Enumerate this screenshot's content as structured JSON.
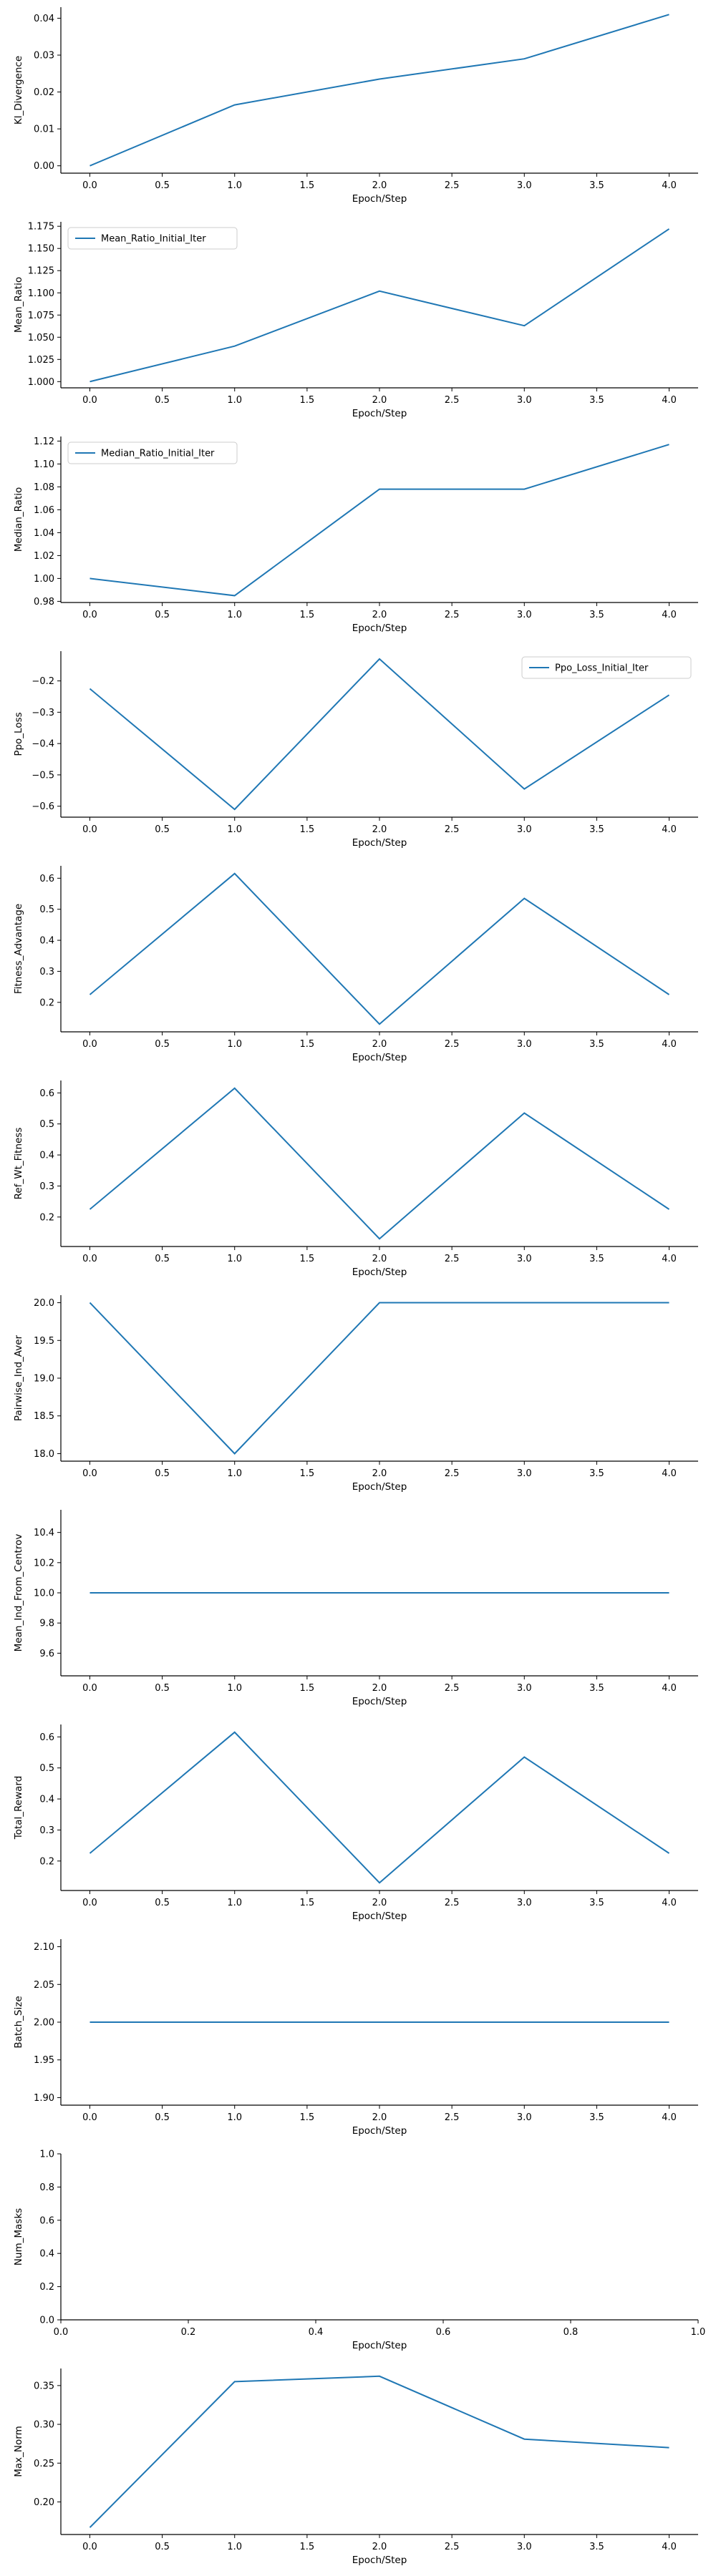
{
  "chart_data": [
    {
      "type": "line",
      "xlabel": "Epoch/Step",
      "ylabel": "Kl_Divergence",
      "x": [
        0,
        1,
        2,
        3,
        4
      ],
      "series": [
        {
          "values": [
            0.0,
            0.0165,
            0.0235,
            0.029,
            0.041
          ]
        }
      ],
      "xlim": [
        -0.2,
        4.2
      ],
      "ylim": [
        -0.002,
        0.043
      ],
      "xticks": [
        0,
        0.5,
        1,
        1.5,
        2,
        2.5,
        3,
        3.5,
        4
      ],
      "xtick_labels": [
        "0.0",
        "0.5",
        "1.0",
        "1.5",
        "2.0",
        "2.5",
        "3.0",
        "3.5",
        "4.0"
      ],
      "yticks": [
        0,
        0.01,
        0.02,
        0.03,
        0.04
      ],
      "ytick_labels": [
        "0.00",
        "0.01",
        "0.02",
        "0.03",
        "0.04"
      ],
      "legend": null
    },
    {
      "type": "line",
      "xlabel": "Epoch/Step",
      "ylabel": "Mean_Ratio",
      "x": [
        0,
        1,
        2,
        3,
        4
      ],
      "series": [
        {
          "name": "Mean_Ratio_Initial_Iter",
          "values": [
            1.0,
            1.04,
            1.102,
            1.063,
            1.172
          ]
        }
      ],
      "xlim": [
        -0.2,
        4.2
      ],
      "ylim": [
        0.993,
        1.18
      ],
      "xticks": [
        0,
        0.5,
        1,
        1.5,
        2,
        2.5,
        3,
        3.5,
        4
      ],
      "xtick_labels": [
        "0.0",
        "0.5",
        "1.0",
        "1.5",
        "2.0",
        "2.5",
        "3.0",
        "3.5",
        "4.0"
      ],
      "yticks": [
        1.0,
        1.025,
        1.05,
        1.075,
        1.1,
        1.125,
        1.15,
        1.175
      ],
      "ytick_labels": [
        "1.000",
        "1.025",
        "1.050",
        "1.075",
        "1.100",
        "1.125",
        "1.150",
        "1.175"
      ],
      "legend": "upper-left"
    },
    {
      "type": "line",
      "xlabel": "Epoch/Step",
      "ylabel": "Median_Ratio",
      "x": [
        0,
        1,
        2,
        3,
        4
      ],
      "series": [
        {
          "name": "Median_Ratio_Initial_Iter",
          "values": [
            1.0,
            0.985,
            1.078,
            1.078,
            1.117
          ]
        }
      ],
      "xlim": [
        -0.2,
        4.2
      ],
      "ylim": [
        0.979,
        1.124
      ],
      "xticks": [
        0,
        0.5,
        1,
        1.5,
        2,
        2.5,
        3,
        3.5,
        4
      ],
      "xtick_labels": [
        "0.0",
        "0.5",
        "1.0",
        "1.5",
        "2.0",
        "2.5",
        "3.0",
        "3.5",
        "4.0"
      ],
      "yticks": [
        0.98,
        1.0,
        1.02,
        1.04,
        1.06,
        1.08,
        1.1,
        1.12
      ],
      "ytick_labels": [
        "0.98",
        "1.00",
        "1.02",
        "1.04",
        "1.06",
        "1.08",
        "1.10",
        "1.12"
      ],
      "legend": "upper-left"
    },
    {
      "type": "line",
      "xlabel": "Epoch/Step",
      "ylabel": "Ppo_Loss",
      "x": [
        0,
        1,
        2,
        3,
        4
      ],
      "series": [
        {
          "name": "Ppo_Loss_Initial_Iter",
          "values": [
            -0.225,
            -0.61,
            -0.13,
            -0.545,
            -0.245
          ]
        }
      ],
      "xlim": [
        -0.2,
        4.2
      ],
      "ylim": [
        -0.635,
        -0.105
      ],
      "xticks": [
        0,
        0.5,
        1,
        1.5,
        2,
        2.5,
        3,
        3.5,
        4
      ],
      "xtick_labels": [
        "0.0",
        "0.5",
        "1.0",
        "1.5",
        "2.0",
        "2.5",
        "3.0",
        "3.5",
        "4.0"
      ],
      "yticks": [
        -0.6,
        -0.5,
        -0.4,
        -0.3,
        -0.2
      ],
      "ytick_labels": [
        "−0.6",
        "−0.5",
        "−0.4",
        "−0.3",
        "−0.2"
      ],
      "legend": "upper-right"
    },
    {
      "type": "line",
      "xlabel": "Epoch/Step",
      "ylabel": "Fitness_Advantage",
      "x": [
        0,
        1,
        2,
        3,
        4
      ],
      "series": [
        {
          "values": [
            0.225,
            0.615,
            0.13,
            0.535,
            0.225
          ]
        }
      ],
      "xlim": [
        -0.2,
        4.2
      ],
      "ylim": [
        0.105,
        0.64
      ],
      "xticks": [
        0,
        0.5,
        1,
        1.5,
        2,
        2.5,
        3,
        3.5,
        4
      ],
      "xtick_labels": [
        "0.0",
        "0.5",
        "1.0",
        "1.5",
        "2.0",
        "2.5",
        "3.0",
        "3.5",
        "4.0"
      ],
      "yticks": [
        0.2,
        0.3,
        0.4,
        0.5,
        0.6
      ],
      "ytick_labels": [
        "0.2",
        "0.3",
        "0.4",
        "0.5",
        "0.6"
      ],
      "legend": null
    },
    {
      "type": "line",
      "xlabel": "Epoch/Step",
      "ylabel": "Ref_Wt_Fitness",
      "x": [
        0,
        1,
        2,
        3,
        4
      ],
      "series": [
        {
          "values": [
            0.225,
            0.615,
            0.13,
            0.535,
            0.225
          ]
        }
      ],
      "xlim": [
        -0.2,
        4.2
      ],
      "ylim": [
        0.105,
        0.64
      ],
      "xticks": [
        0,
        0.5,
        1,
        1.5,
        2,
        2.5,
        3,
        3.5,
        4
      ],
      "xtick_labels": [
        "0.0",
        "0.5",
        "1.0",
        "1.5",
        "2.0",
        "2.5",
        "3.0",
        "3.5",
        "4.0"
      ],
      "yticks": [
        0.2,
        0.3,
        0.4,
        0.5,
        0.6
      ],
      "ytick_labels": [
        "0.2",
        "0.3",
        "0.4",
        "0.5",
        "0.6"
      ],
      "legend": null
    },
    {
      "type": "line",
      "xlabel": "Epoch/Step",
      "ylabel": "Pairwise_Ind_Aver",
      "x": [
        0,
        1,
        2,
        3,
        4
      ],
      "series": [
        {
          "values": [
            20.0,
            18.0,
            20.0,
            20.0,
            20.0
          ]
        }
      ],
      "xlim": [
        -0.2,
        4.2
      ],
      "ylim": [
        17.9,
        20.1
      ],
      "xticks": [
        0,
        0.5,
        1,
        1.5,
        2,
        2.5,
        3,
        3.5,
        4
      ],
      "xtick_labels": [
        "0.0",
        "0.5",
        "1.0",
        "1.5",
        "2.0",
        "2.5",
        "3.0",
        "3.5",
        "4.0"
      ],
      "yticks": [
        18.0,
        18.5,
        19.0,
        19.5,
        20.0
      ],
      "ytick_labels": [
        "18.0",
        "18.5",
        "19.0",
        "19.5",
        "20.0"
      ],
      "legend": null
    },
    {
      "type": "line",
      "xlabel": "Epoch/Step",
      "ylabel": "Mean_Ind_From_Centrov",
      "x": [
        0,
        1,
        2,
        3,
        4
      ],
      "series": [
        {
          "values": [
            10.0,
            10.0,
            10.0,
            10.0,
            10.0
          ]
        }
      ],
      "xlim": [
        -0.2,
        4.2
      ],
      "ylim": [
        9.45,
        10.55
      ],
      "xticks": [
        0,
        0.5,
        1,
        1.5,
        2,
        2.5,
        3,
        3.5,
        4
      ],
      "xtick_labels": [
        "0.0",
        "0.5",
        "1.0",
        "1.5",
        "2.0",
        "2.5",
        "3.0",
        "3.5",
        "4.0"
      ],
      "yticks": [
        9.6,
        9.8,
        10.0,
        10.2,
        10.4
      ],
      "ytick_labels": [
        "9.6",
        "9.8",
        "10.0",
        "10.2",
        "10.4"
      ],
      "legend": null
    },
    {
      "type": "line",
      "xlabel": "Epoch/Step",
      "ylabel": "Total_Reward",
      "x": [
        0,
        1,
        2,
        3,
        4
      ],
      "series": [
        {
          "values": [
            0.225,
            0.615,
            0.13,
            0.535,
            0.225
          ]
        }
      ],
      "xlim": [
        -0.2,
        4.2
      ],
      "ylim": [
        0.105,
        0.64
      ],
      "xticks": [
        0,
        0.5,
        1,
        1.5,
        2,
        2.5,
        3,
        3.5,
        4
      ],
      "xtick_labels": [
        "0.0",
        "0.5",
        "1.0",
        "1.5",
        "2.0",
        "2.5",
        "3.0",
        "3.5",
        "4.0"
      ],
      "yticks": [
        0.2,
        0.3,
        0.4,
        0.5,
        0.6
      ],
      "ytick_labels": [
        "0.2",
        "0.3",
        "0.4",
        "0.5",
        "0.6"
      ],
      "legend": null
    },
    {
      "type": "line",
      "xlabel": "Epoch/Step",
      "ylabel": "Batch_Size",
      "x": [
        0,
        1,
        2,
        3,
        4
      ],
      "series": [
        {
          "values": [
            2.0,
            2.0,
            2.0,
            2.0,
            2.0
          ]
        }
      ],
      "xlim": [
        -0.2,
        4.2
      ],
      "ylim": [
        1.89,
        2.11
      ],
      "xticks": [
        0,
        0.5,
        1,
        1.5,
        2,
        2.5,
        3,
        3.5,
        4
      ],
      "xtick_labels": [
        "0.0",
        "0.5",
        "1.0",
        "1.5",
        "2.0",
        "2.5",
        "3.0",
        "3.5",
        "4.0"
      ],
      "yticks": [
        1.9,
        1.95,
        2.0,
        2.05,
        2.1
      ],
      "ytick_labels": [
        "1.90",
        "1.95",
        "2.00",
        "2.05",
        "2.10"
      ],
      "legend": null
    },
    {
      "type": "line",
      "xlabel": "Epoch/Step",
      "ylabel": "Num_Masks",
      "x": [],
      "series": [],
      "xlim": [
        0,
        1
      ],
      "ylim": [
        0,
        1
      ],
      "xticks": [
        0,
        0.2,
        0.4,
        0.6,
        0.8,
        1.0
      ],
      "xtick_labels": [
        "0.0",
        "0.2",
        "0.4",
        "0.6",
        "0.8",
        "1.0"
      ],
      "yticks": [
        0,
        0.2,
        0.4,
        0.6,
        0.8,
        1.0
      ],
      "ytick_labels": [
        "0.0",
        "0.2",
        "0.4",
        "0.6",
        "0.8",
        "1.0"
      ],
      "legend": null
    },
    {
      "type": "line",
      "xlabel": "Epoch/Step",
      "ylabel": "Max_Norm",
      "x": [
        0,
        1,
        2,
        3,
        4
      ],
      "series": [
        {
          "values": [
            0.167,
            0.355,
            0.362,
            0.281,
            0.27
          ]
        }
      ],
      "xlim": [
        -0.2,
        4.2
      ],
      "ylim": [
        0.158,
        0.372
      ],
      "xticks": [
        0,
        0.5,
        1,
        1.5,
        2,
        2.5,
        3,
        3.5,
        4
      ],
      "xtick_labels": [
        "0.0",
        "0.5",
        "1.0",
        "1.5",
        "2.0",
        "2.5",
        "3.0",
        "3.5",
        "4.0"
      ],
      "yticks": [
        0.2,
        0.25,
        0.3,
        0.35
      ],
      "ytick_labels": [
        "0.20",
        "0.25",
        "0.30",
        "0.35"
      ],
      "legend": null
    }
  ]
}
